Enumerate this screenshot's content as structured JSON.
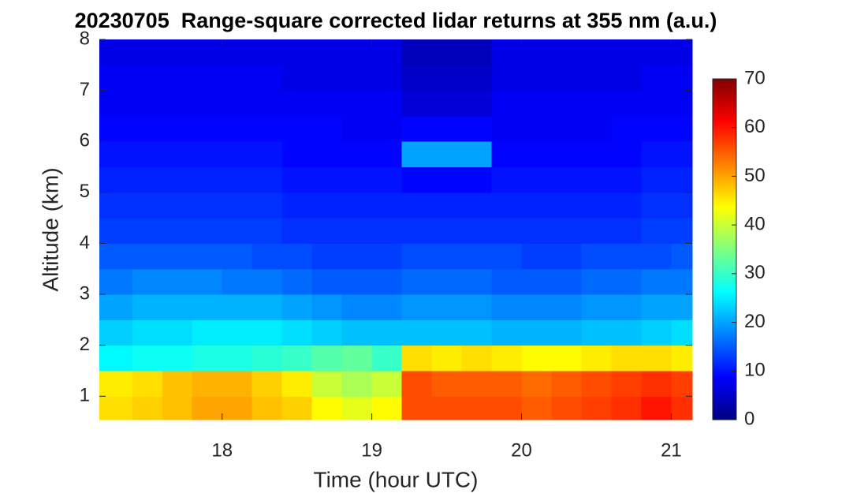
{
  "chart_data": {
    "type": "heatmap",
    "title": "20230705  Range-square corrected lidar returns at 355 nm (a.u.)",
    "x_label": "Time (hour UTC)",
    "y_label": "Altitude (km)",
    "colormap": "jet",
    "xlim": [
      17.18,
      21.14
    ],
    "ylim": [
      0.54,
      8
    ],
    "xticks": [
      18,
      19,
      20,
      21
    ],
    "yticks": [
      1,
      2,
      3,
      4,
      5,
      6,
      7,
      8
    ],
    "clim": [
      0,
      70
    ],
    "cticks": [
      0,
      10,
      20,
      30,
      40,
      50,
      60,
      70
    ],
    "x": [
      17.3,
      17.5,
      17.7,
      17.9,
      18.1,
      18.3,
      18.5,
      18.7,
      18.9,
      19.1,
      19.3,
      19.5,
      19.7,
      19.9,
      20.1,
      20.3,
      20.5,
      20.7,
      20.9,
      21.1
    ],
    "y": [
      0.75,
      1.25,
      1.75,
      2.25,
      2.75,
      3.25,
      3.75,
      4.25,
      4.75,
      5.25,
      5.75,
      6.25,
      6.75,
      7.25,
      7.75
    ],
    "z": [
      [
        46,
        47,
        48,
        50,
        50,
        48,
        47,
        44,
        42,
        44,
        56,
        56,
        56,
        56,
        55,
        56,
        57,
        58,
        60,
        58
      ],
      [
        45,
        46,
        48,
        49,
        49,
        47,
        45,
        40,
        38,
        40,
        56,
        55,
        55,
        55,
        54,
        55,
        56,
        57,
        58,
        57
      ],
      [
        26,
        27,
        27,
        28,
        28,
        29,
        30,
        32,
        33,
        30,
        46,
        45,
        46,
        45,
        44,
        44,
        45,
        46,
        46,
        45
      ],
      [
        23,
        24,
        24,
        25,
        25,
        25,
        24,
        23,
        22,
        22,
        22,
        22,
        22,
        21,
        21,
        21,
        22,
        22,
        23,
        24
      ],
      [
        20,
        21,
        21,
        21,
        21,
        21,
        20,
        19,
        18,
        18,
        19,
        19,
        19,
        18,
        18,
        18,
        19,
        19,
        20,
        20
      ],
      [
        17,
        18,
        18,
        18,
        17,
        17,
        16,
        15,
        15,
        15,
        16,
        16,
        16,
        15,
        15,
        15,
        16,
        16,
        17,
        17
      ],
      [
        15,
        15,
        15,
        15,
        15,
        14,
        14,
        13,
        13,
        13,
        14,
        14,
        14,
        14,
        13,
        13,
        14,
        14,
        14,
        15
      ],
      [
        13,
        13,
        13,
        13,
        13,
        13,
        12,
        12,
        12,
        12,
        12,
        12,
        12,
        12,
        12,
        12,
        12,
        12,
        13,
        13
      ],
      [
        12,
        12,
        12,
        12,
        12,
        12,
        11,
        11,
        11,
        11,
        11,
        11,
        11,
        11,
        11,
        11,
        11,
        11,
        12,
        12
      ],
      [
        11,
        11,
        11,
        11,
        11,
        11,
        10,
        10,
        10,
        10,
        9,
        9,
        9,
        10,
        10,
        10,
        10,
        10,
        11,
        11
      ],
      [
        10,
        10,
        10,
        10,
        10,
        10,
        9,
        9,
        9,
        9,
        20,
        20,
        20,
        9,
        9,
        9,
        9,
        9,
        10,
        10
      ],
      [
        9,
        9,
        9,
        9,
        9,
        9,
        9,
        9,
        8,
        8,
        9,
        9,
        9,
        8,
        8,
        8,
        8,
        9,
        9,
        9
      ],
      [
        8,
        8,
        8,
        8,
        8,
        8,
        8,
        8,
        8,
        8,
        6,
        6,
        6,
        8,
        8,
        8,
        8,
        8,
        8,
        8
      ],
      [
        8,
        8,
        8,
        8,
        8,
        8,
        7,
        7,
        7,
        7,
        5,
        5,
        5,
        7,
        7,
        7,
        7,
        7,
        8,
        8
      ],
      [
        7,
        7,
        7,
        7,
        7,
        7,
        7,
        7,
        7,
        7,
        4,
        4,
        4,
        7,
        7,
        7,
        7,
        7,
        7,
        7
      ]
    ]
  }
}
